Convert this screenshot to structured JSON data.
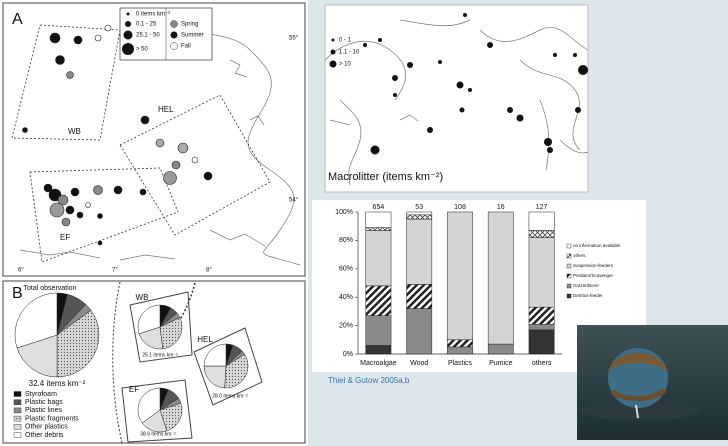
{
  "panel_a": {
    "label": "A",
    "size_legend": [
      "0 items km⁻²",
      "0.1 - 25",
      "25.1 - 50",
      "> 50"
    ],
    "season_legend": [
      "Spring",
      "Summer",
      "Fall"
    ],
    "regions": [
      "WB",
      "HEL",
      "EF"
    ],
    "lat_labels": [
      "55°",
      "54°"
    ],
    "lon_labels": [
      "6°",
      "7°",
      "8°"
    ]
  },
  "panel_b": {
    "label": "B"
  },
  "world_map": {
    "legend": [
      "0 - 1",
      "1.1 - 10",
      "> 10"
    ],
    "caption": "Macrolitter (items km⁻²)"
  },
  "citation": "Thiel & Gutow 2005a,b",
  "chart_data": [
    {
      "type": "bar",
      "stacked": true,
      "categories": [
        "Macroalgae",
        "Wood",
        "Plastics",
        "Pumice",
        "others"
      ],
      "n": [
        654,
        53,
        108,
        16,
        127
      ],
      "series": [
        {
          "name": "Detritus-feeder",
          "color": "#333333",
          "values": [
            6,
            0,
            0,
            0,
            17
          ]
        },
        {
          "name": "Grazer/Borer",
          "color": "#8a8a8a",
          "values": [
            21,
            32,
            5,
            7,
            4
          ]
        },
        {
          "name": "Predator/Scavenger",
          "color": "#222222",
          "pattern": "hatch",
          "values": [
            21,
            17,
            5,
            0,
            12
          ]
        },
        {
          "name": "Suspension-feeders",
          "color": "#d4d4d4",
          "values": [
            39,
            46,
            90,
            93,
            49
          ]
        },
        {
          "name": "others",
          "color": "#555555",
          "pattern": "cross",
          "values": [
            2,
            3,
            0,
            0,
            5
          ]
        },
        {
          "name": "no information available",
          "color": "#ffffff",
          "values": [
            11,
            2,
            0,
            0,
            13
          ]
        }
      ],
      "ylim": [
        0,
        100
      ],
      "yticks": [
        {
          "value": 0,
          "label": "0%"
        },
        {
          "value": 20,
          "label": "20%"
        },
        {
          "value": 40,
          "label": "40%"
        },
        {
          "value": 60,
          "label": "60%"
        },
        {
          "value": 80,
          "label": "80%"
        },
        {
          "value": 100,
          "label": "100%"
        }
      ]
    },
    {
      "type": "pie",
      "title": "Total observation",
      "subtitle": "32.4 items km⁻²",
      "categories": [
        "Styrofoam",
        "Plastic bags",
        "Plastic lines",
        "Plastic fragments",
        "Other plastics",
        "Other debris"
      ],
      "colors": [
        "#111111",
        "#555555",
        "#8a8a8a",
        "#bdbdbd",
        "#dedede",
        "#ffffff"
      ],
      "values": [
        4,
        8,
        3,
        35,
        20,
        30
      ]
    },
    {
      "type": "pie",
      "title": "WB",
      "subtitle": "25.1 items km⁻²",
      "colors": [
        "#111111",
        "#555555",
        "#8a8a8a",
        "#bdbdbd",
        "#dedede",
        "#ffffff"
      ],
      "values": [
        8,
        6,
        4,
        30,
        22,
        30
      ]
    },
    {
      "type": "pie",
      "title": "HEL",
      "subtitle": "28.0 items km⁻²",
      "colors": [
        "#111111",
        "#555555",
        "#8a8a8a",
        "#bdbdbd",
        "#dedede",
        "#ffffff"
      ],
      "values": [
        5,
        8,
        3,
        35,
        24,
        25
      ]
    },
    {
      "type": "pie",
      "title": "EF",
      "subtitle": "38.6 items km⁻²",
      "colors": [
        "#111111",
        "#555555",
        "#8a8a8a",
        "#bdbdbd",
        "#dedede",
        "#ffffff"
      ],
      "values": [
        6,
        10,
        4,
        25,
        20,
        35
      ]
    }
  ]
}
